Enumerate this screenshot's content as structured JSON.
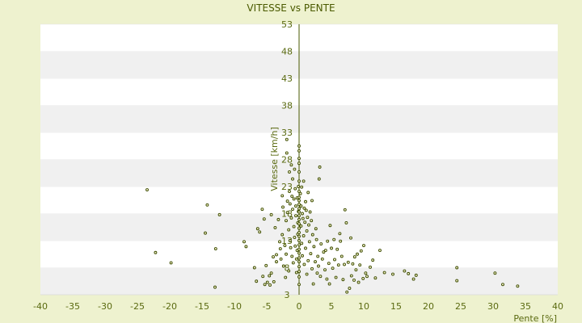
{
  "chart_data": {
    "type": "scatter",
    "title": "VITESSE vs PENTE",
    "xlabel": "Pente [%]",
    "ylabel": "Vitesse [km/h]",
    "xlim": [
      -40,
      40
    ],
    "ylim": [
      3,
      53
    ],
    "x_ticks": [
      "-40",
      "-35",
      "-30",
      "-25",
      "-20",
      "-15",
      "-10",
      "-5",
      "0",
      "5",
      "10",
      "15",
      "20",
      "25",
      "30",
      "35",
      "40"
    ],
    "y_ticks": [
      "3",
      "8",
      "13",
      "18",
      "23",
      "28",
      "33",
      "38",
      "43",
      "48",
      "53"
    ],
    "grid": "horizontal alternating bands",
    "colors": {
      "background": "#eef2cf",
      "band_light": "#ffffff",
      "band_dark": "#f0f0f0",
      "axis": "#4a5a00",
      "marker": "#3a4a00"
    },
    "points": [
      [
        -23.5,
        22.4
      ],
      [
        -22.2,
        10.8
      ],
      [
        -19.8,
        8.9
      ],
      [
        -14.2,
        19.6
      ],
      [
        -14.5,
        14.4
      ],
      [
        -13,
        4.4
      ],
      [
        -12.9,
        11.5
      ],
      [
        -12.3,
        17.8
      ],
      [
        -8.5,
        12.8
      ],
      [
        -8.2,
        11.9
      ],
      [
        -6.9,
        8.0
      ],
      [
        -6.6,
        5.5
      ],
      [
        -6.4,
        15.2
      ],
      [
        -6.1,
        14.6
      ],
      [
        -5.7,
        18.8
      ],
      [
        -5.6,
        6.4
      ],
      [
        -5.4,
        17.0
      ],
      [
        -5.3,
        4.9
      ],
      [
        -5.1,
        8.4
      ],
      [
        -4.9,
        5.3
      ],
      [
        -4.6,
        6.5
      ],
      [
        -4.5,
        4.8
      ],
      [
        -4.3,
        17.8
      ],
      [
        -4.3,
        7.0
      ],
      [
        -4.0,
        10.0
      ],
      [
        -3.9,
        5.4
      ],
      [
        -3.7,
        15.4
      ],
      [
        -3.5,
        10.4
      ],
      [
        -3.5,
        9.1
      ],
      [
        -3.2,
        16.9
      ],
      [
        -3.0,
        12.8
      ],
      [
        -2.9,
        11.5
      ],
      [
        -2.8,
        9.6
      ],
      [
        -2.6,
        21.3
      ],
      [
        -2.6,
        14.1
      ],
      [
        -2.5,
        19.2
      ],
      [
        -2.4,
        8.3
      ],
      [
        -2.2,
        12.1
      ],
      [
        -2.1,
        6.2
      ],
      [
        -2.0,
        16.7
      ],
      [
        -2.0,
        10.5
      ],
      [
        -1.9,
        29.2
      ],
      [
        -1.9,
        31.7
      ],
      [
        -1.8,
        20.3
      ],
      [
        -1.8,
        18.2
      ],
      [
        -1.6,
        15.0
      ],
      [
        -1.6,
        7.4
      ],
      [
        -1.5,
        25.7
      ],
      [
        -1.5,
        22.1
      ],
      [
        -1.4,
        13.0
      ],
      [
        -1.4,
        19.8
      ],
      [
        -1.3,
        11.7
      ],
      [
        -1.2,
        27.0
      ],
      [
        -1.2,
        17.2
      ],
      [
        -1.1,
        21.2
      ],
      [
        -1.1,
        10.1
      ],
      [
        -1.0,
        18.8
      ],
      [
        -1.0,
        24.4
      ],
      [
        -0.9,
        8.9
      ],
      [
        -0.8,
        15.6
      ],
      [
        -0.8,
        20.7
      ],
      [
        -0.7,
        26.2
      ],
      [
        -0.7,
        13.6
      ],
      [
        -0.6,
        12.0
      ],
      [
        -0.6,
        22.6
      ],
      [
        -0.5,
        17.6
      ],
      [
        -0.5,
        19.4
      ],
      [
        -0.4,
        9.6
      ],
      [
        -0.4,
        7.1
      ],
      [
        -0.3,
        20.9
      ],
      [
        -0.3,
        11.2
      ],
      [
        -0.2,
        16.3
      ],
      [
        -0.2,
        14.2
      ],
      [
        -0.1,
        18.4
      ],
      [
        -0.1,
        23.0
      ],
      [
        0.0,
        30.5
      ],
      [
        0.0,
        29.6
      ],
      [
        0.0,
        28.2
      ],
      [
        0.0,
        27.3
      ],
      [
        0.0,
        25.7
      ],
      [
        0.0,
        24.0
      ],
      [
        0.0,
        22.1
      ],
      [
        0.0,
        21.0
      ],
      [
        0.0,
        20.4
      ],
      [
        0.0,
        19.7
      ],
      [
        0.0,
        18.9
      ],
      [
        0.0,
        18.3
      ],
      [
        0.0,
        17.6
      ],
      [
        0.0,
        16.9
      ],
      [
        0.0,
        16.1
      ],
      [
        0.0,
        15.3
      ],
      [
        0.0,
        14.5
      ],
      [
        0.0,
        13.8
      ],
      [
        0.0,
        13.0
      ],
      [
        0.0,
        12.2
      ],
      [
        0.0,
        11.4
      ],
      [
        0.0,
        10.7
      ],
      [
        0.0,
        9.8
      ],
      [
        0.0,
        9.1
      ],
      [
        0.0,
        8.2
      ],
      [
        0.0,
        7.3
      ],
      [
        0.0,
        6.3
      ],
      [
        0.0,
        4.9
      ],
      [
        0.2,
        21.7
      ],
      [
        0.3,
        19.4
      ],
      [
        0.3,
        15.7
      ],
      [
        0.4,
        22.9
      ],
      [
        0.4,
        12.5
      ],
      [
        0.5,
        18.0
      ],
      [
        0.5,
        10.2
      ],
      [
        0.6,
        17.1
      ],
      [
        0.7,
        24.0
      ],
      [
        0.7,
        13.9
      ],
      [
        0.8,
        19.0
      ],
      [
        0.8,
        8.6
      ],
      [
        0.9,
        16.4
      ],
      [
        1.0,
        20.2
      ],
      [
        1.0,
        11.6
      ],
      [
        1.1,
        18.6
      ],
      [
        1.2,
        14.8
      ],
      [
        1.2,
        6.8
      ],
      [
        1.3,
        17.3
      ],
      [
        1.4,
        21.9
      ],
      [
        1.4,
        9.3
      ],
      [
        1.5,
        15.9
      ],
      [
        1.6,
        12.8
      ],
      [
        1.7,
        18.3
      ],
      [
        1.8,
        10.6
      ],
      [
        1.9,
        16.7
      ],
      [
        2.0,
        20.4
      ],
      [
        2.0,
        7.8
      ],
      [
        2.1,
        14.1
      ],
      [
        2.2,
        5.0
      ],
      [
        2.3,
        11.9
      ],
      [
        2.5,
        9.1
      ],
      [
        2.6,
        15.2
      ],
      [
        2.7,
        13.2
      ],
      [
        2.8,
        7.0
      ],
      [
        2.9,
        10.1
      ],
      [
        3.0,
        8.3
      ],
      [
        3.1,
        24.4
      ],
      [
        3.2,
        26.6
      ],
      [
        3.3,
        6.4
      ],
      [
        3.4,
        12.4
      ],
      [
        3.6,
        9.6
      ],
      [
        3.8,
        10.9
      ],
      [
        4.0,
        7.6
      ],
      [
        4.1,
        11.2
      ],
      [
        4.3,
        5.9
      ],
      [
        4.4,
        12.9
      ],
      [
        4.6,
        8.8
      ],
      [
        4.7,
        5.0
      ],
      [
        4.8,
        15.8
      ],
      [
        5.0,
        11.6
      ],
      [
        5.2,
        7.9
      ],
      [
        5.4,
        13.2
      ],
      [
        5.5,
        9.5
      ],
      [
        5.7,
        6.2
      ],
      [
        5.9,
        11.4
      ],
      [
        6.1,
        8.5
      ],
      [
        6.3,
        14.3
      ],
      [
        6.4,
        12.9
      ],
      [
        6.6,
        10.1
      ],
      [
        6.8,
        5.8
      ],
      [
        7.0,
        8.6
      ],
      [
        7.1,
        18.7
      ],
      [
        7.3,
        16.3
      ],
      [
        7.4,
        3.5
      ],
      [
        7.6,
        9.0
      ],
      [
        7.8,
        4.2
      ],
      [
        8.0,
        13.5
      ],
      [
        8.1,
        6.5
      ],
      [
        8.3,
        8.7
      ],
      [
        8.5,
        5.7
      ],
      [
        8.6,
        10.0
      ],
      [
        8.8,
        7.6
      ],
      [
        9.0,
        10.5
      ],
      [
        9.2,
        5.3
      ],
      [
        9.4,
        8.5
      ],
      [
        9.6,
        11.1
      ],
      [
        9.9,
        6.0
      ],
      [
        10.0,
        12.1
      ],
      [
        10.3,
        7.0
      ],
      [
        10.5,
        6.4
      ],
      [
        11.0,
        8.1
      ],
      [
        11.4,
        9.4
      ],
      [
        11.8,
        6.1
      ],
      [
        12.5,
        11.2
      ],
      [
        13.2,
        7.1
      ],
      [
        14.5,
        6.8
      ],
      [
        16.3,
        7.4
      ],
      [
        16.9,
        6.9
      ],
      [
        17.7,
        5.9
      ],
      [
        18.1,
        6.6
      ],
      [
        24.4,
        8.0
      ],
      [
        24.4,
        5.6
      ],
      [
        30.3,
        7.0
      ],
      [
        31.5,
        4.9
      ],
      [
        33.8,
        4.6
      ]
    ]
  }
}
